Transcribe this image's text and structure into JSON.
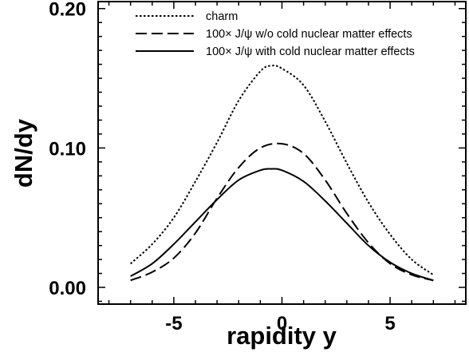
{
  "chart_data": {
    "type": "line",
    "xlabel": "rapidity y",
    "ylabel": "dN/dy",
    "xlim": [
      -8.5,
      8.5
    ],
    "ylim": [
      -0.012,
      0.205
    ],
    "x_ticks": [
      -5,
      0,
      5
    ],
    "x_tick_labels": [
      "-5",
      "0",
      "5"
    ],
    "y_ticks": [
      0.0,
      0.1,
      0.2
    ],
    "y_tick_labels": [
      "0.00",
      "0.10",
      "0.20"
    ],
    "grid": false,
    "legend_position": "top-right",
    "series": [
      {
        "name": "charm",
        "style": "dotted",
        "color": "#000000",
        "x": [
          -7,
          -6,
          -5,
          -4,
          -3,
          -2,
          -1,
          -0.5,
          0,
          1,
          2,
          3,
          4,
          5,
          6,
          7
        ],
        "y": [
          0.017,
          0.031,
          0.05,
          0.076,
          0.104,
          0.134,
          0.155,
          0.159,
          0.157,
          0.145,
          0.119,
          0.089,
          0.061,
          0.038,
          0.02,
          0.009
        ]
      },
      {
        "name": "100× J/ψ w/o cold nuclear matter effects",
        "style": "dashed",
        "color": "#000000",
        "x": [
          -7,
          -6,
          -5,
          -4,
          -3,
          -2,
          -1,
          0,
          1,
          2,
          3,
          4,
          5,
          6,
          7
        ],
        "y": [
          0.005,
          0.011,
          0.021,
          0.039,
          0.064,
          0.086,
          0.1,
          0.103,
          0.096,
          0.077,
          0.053,
          0.032,
          0.017,
          0.009,
          0.005
        ]
      },
      {
        "name": "100× J/ψ with cold nuclear matter effects",
        "style": "solid",
        "color": "#000000",
        "x": [
          -7,
          -6,
          -5,
          -4,
          -3,
          -2,
          -1,
          -0.5,
          0,
          1,
          2,
          3,
          4,
          5,
          6,
          7
        ],
        "y": [
          0.008,
          0.017,
          0.031,
          0.047,
          0.063,
          0.077,
          0.084,
          0.085,
          0.084,
          0.076,
          0.062,
          0.046,
          0.03,
          0.018,
          0.01,
          0.005
        ]
      }
    ]
  }
}
